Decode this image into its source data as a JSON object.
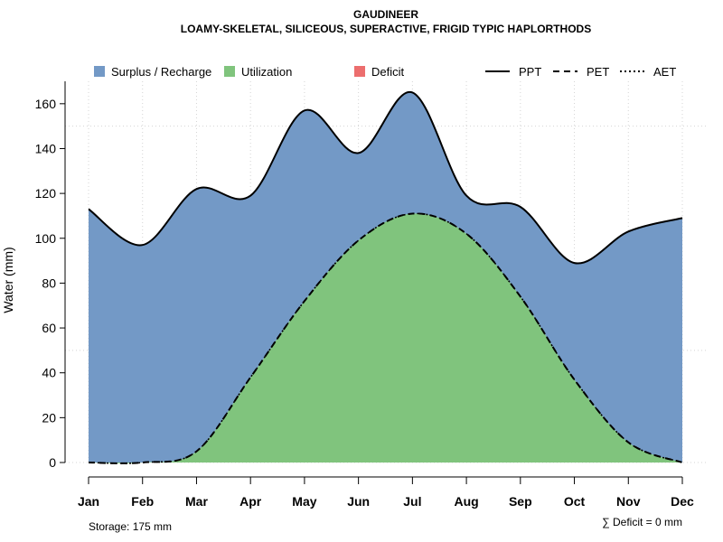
{
  "chart_data": {
    "type": "area",
    "title": "GAUDINEER",
    "subtitle": "LOAMY-SKELETAL, SILICEOUS, SUPERACTIVE, FRIGID TYPIC HAPLORTHODS",
    "ylabel": "Water (mm)",
    "xlabel": "",
    "categories": [
      "Jan",
      "Feb",
      "Mar",
      "Apr",
      "May",
      "Jun",
      "Jul",
      "Aug",
      "Sep",
      "Oct",
      "Nov",
      "Dec"
    ],
    "yticks": [
      0,
      20,
      40,
      60,
      80,
      100,
      120,
      140,
      160
    ],
    "ylim": [
      0,
      170
    ],
    "grid": true,
    "legend_placement": "top",
    "area_legend": [
      {
        "label": "Surplus / Recharge",
        "color": "#7399C6"
      },
      {
        "label": "Utilization",
        "color": "#80C47D"
      },
      {
        "label": "Deficit",
        "color": "#EC6E6E"
      }
    ],
    "line_legend": [
      {
        "label": "PPT",
        "style": "solid"
      },
      {
        "label": "PET",
        "style": "dashed"
      },
      {
        "label": "AET",
        "style": "dotted"
      }
    ],
    "series": [
      {
        "name": "PPT",
        "values": [
          113,
          97,
          122,
          119,
          157,
          138,
          165,
          119,
          114,
          89,
          103,
          109
        ]
      },
      {
        "name": "PET",
        "values": [
          0,
          0,
          5,
          38,
          72,
          99,
          111,
          102,
          74,
          37,
          9,
          0
        ]
      },
      {
        "name": "AET",
        "values": [
          0,
          0,
          5,
          38,
          72,
          99,
          111,
          102,
          74,
          37,
          9,
          0
        ]
      }
    ],
    "notes": {
      "storage": "Storage: 175 mm",
      "deficit": "∑ Deficit = 0 mm"
    }
  }
}
